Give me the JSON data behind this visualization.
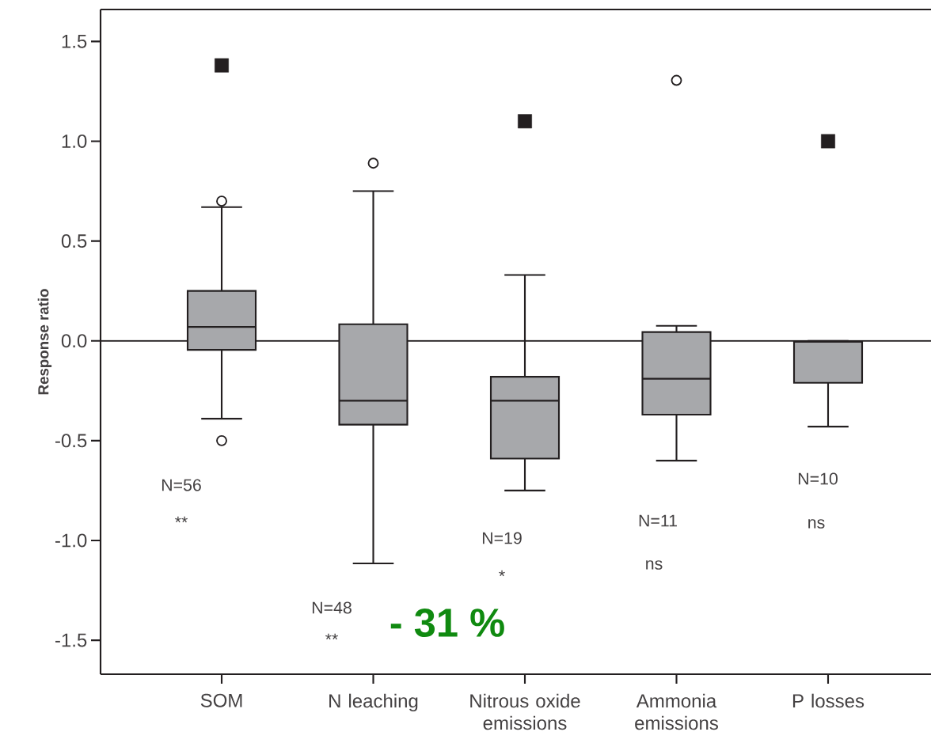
{
  "chart_data": {
    "type": "box",
    "ylabel": "Response ratio",
    "categories": [
      "SOM",
      "N leaching",
      "Nitrous oxide emissions",
      "Ammonia emissions",
      "P losses"
    ],
    "color": "#a7a8ab",
    "boxes": [
      {
        "low": -0.39,
        "q1": -0.045,
        "median": 0.07,
        "q3": 0.25,
        "high": 0.67,
        "outliers": [
          0.7,
          -0.5
        ]
      },
      {
        "low": -1.115,
        "q1": -0.42,
        "median": -0.3,
        "q3": 0.083,
        "high": 0.75,
        "outliers": [
          0.89
        ]
      },
      {
        "low": -0.75,
        "q1": -0.59,
        "median": -0.3,
        "q3": -0.18,
        "high": 0.33
      },
      {
        "low": -0.6,
        "q1": -0.37,
        "median": -0.19,
        "q3": 0.044,
        "high": 0.075,
        "outliers": [
          1.305
        ]
      },
      {
        "low": -0.43,
        "q1": -0.21,
        "median": -0.005,
        "q3": -0.005,
        "high": 0.0
      }
    ],
    "series": [
      {
        "type": "scatter",
        "color": "#231f20",
        "marker": "square",
        "values": [
          1.38,
          null,
          1.1,
          null,
          1.0
        ]
      }
    ],
    "ylim": [
      -1.67,
      1.66
    ],
    "yticks": [
      {
        "value": -1.5,
        "label": "-1.5"
      },
      {
        "value": -1,
        "label": "-1.0"
      },
      {
        "value": -0.5,
        "label": "-0.5"
      },
      {
        "value": 0,
        "label": "0.0"
      },
      {
        "value": 0.5,
        "label": "0.5"
      },
      {
        "value": 1,
        "label": "1.0"
      },
      {
        "value": 1.5,
        "label": "1.5"
      }
    ],
    "ref_lines": [
      {
        "axis": "y",
        "value": 0
      }
    ],
    "annotations": [
      "N=56",
      "**",
      "N=48",
      "**",
      "N=19",
      "*",
      "N=11",
      "ns",
      "N=10",
      "ns",
      "- 31 %"
    ]
  }
}
